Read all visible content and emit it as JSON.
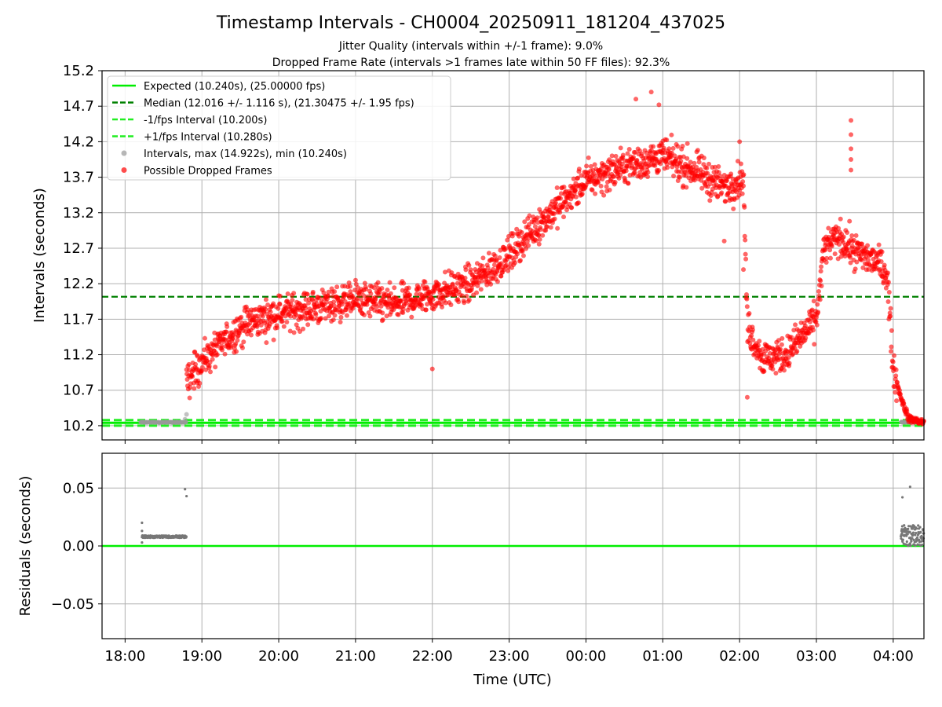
{
  "figure": {
    "title": "Timestamp Intervals - CH0004_20250911_181204_437025",
    "subtitle1": "Jitter Quality (intervals within +/-1 frame): 9.0%",
    "subtitle2": "Dropped Frame Rate (intervals >1 frames late within 50 FF files): 92.3%"
  },
  "colors": {
    "expected": "#00ee00",
    "median": "#008000",
    "fps_band": "#22ee22",
    "intervals": "#999999",
    "dropped": "#ff0000",
    "residuals": "#777777",
    "grid": "#b0b0b0"
  },
  "chart_data": [
    {
      "type": "scatter",
      "panel": "top",
      "ylabel": "Intervals (seconds)",
      "xlabel": "",
      "x_ticks": [
        "18:00",
        "19:00",
        "20:00",
        "21:00",
        "22:00",
        "23:00",
        "00:00",
        "01:00",
        "02:00",
        "03:00",
        "04:00"
      ],
      "x_range_hours": [
        17.7,
        28.4
      ],
      "ylim": [
        10.0,
        15.2
      ],
      "y_ticks": [
        "10.2",
        "10.7",
        "11.2",
        "11.7",
        "12.2",
        "12.7",
        "13.2",
        "13.7",
        "14.2",
        "14.7",
        "15.2"
      ],
      "grid": true,
      "legend_position": "top-left",
      "legend": [
        {
          "label": "Expected (10.240s), (25.00000 fps)",
          "style": "solid-line",
          "color": "#00ee00"
        },
        {
          "label": "Median (12.016 +/- 1.116 s), (21.30475 +/- 1.95 fps)",
          "style": "dashed-line",
          "color": "#008000"
        },
        {
          "label": "-1/fps Interval (10.200s)",
          "style": "dashed-line",
          "color": "#22ee22"
        },
        {
          "label": "+1/fps Interval (10.280s)",
          "style": "dashed-line",
          "color": "#22ee22"
        },
        {
          "label": "Intervals, max (14.922s), min (10.240s)",
          "style": "marker",
          "color": "#999999"
        },
        {
          "label": "Possible Dropped Frames",
          "style": "marker",
          "color": "#ff0000"
        }
      ],
      "hlines": {
        "expected": 10.24,
        "median": 12.016,
        "minus_1fps": 10.2,
        "plus_1fps": 10.28
      },
      "series": [
        {
          "name": "Intervals, max (14.922s), min (10.240s)",
          "kind": "normal_intervals",
          "segments": [
            {
              "x_start": 18.2,
              "x_end": 18.8,
              "y": 10.248
            },
            {
              "x_start": 28.1,
              "x_end": 28.4,
              "y": 10.252
            }
          ],
          "outliers": [
            {
              "x": 18.78,
              "y": 10.29
            },
            {
              "x": 18.8,
              "y": 10.36
            }
          ]
        },
        {
          "name": "Possible Dropped Frames",
          "kind": "dropped_frames",
          "trend": [
            [
              18.8,
              10.8
            ],
            [
              19.0,
              11.1
            ],
            [
              19.3,
              11.4
            ],
            [
              19.6,
              11.65
            ],
            [
              20.0,
              11.78
            ],
            [
              20.5,
              11.87
            ],
            [
              21.0,
              11.98
            ],
            [
              21.5,
              11.9
            ],
            [
              22.0,
              12.05
            ],
            [
              22.5,
              12.2
            ],
            [
              23.0,
              12.6
            ],
            [
              23.3,
              12.95
            ],
            [
              23.6,
              13.25
            ],
            [
              24.0,
              13.65
            ],
            [
              24.5,
              13.85
            ],
            [
              25.0,
              14.0
            ],
            [
              25.5,
              13.75
            ],
            [
              25.8,
              13.55
            ],
            [
              26.05,
              13.7
            ],
            [
              26.1,
              11.6
            ],
            [
              26.3,
              11.15
            ],
            [
              26.6,
              11.2
            ],
            [
              26.8,
              11.45
            ],
            [
              27.0,
              11.7
            ],
            [
              27.1,
              12.7
            ],
            [
              27.3,
              12.85
            ],
            [
              27.5,
              12.65
            ],
            [
              27.8,
              12.5
            ],
            [
              27.92,
              12.35
            ],
            [
              28.0,
              11.0
            ],
            [
              28.1,
              10.6
            ],
            [
              28.2,
              10.3
            ],
            [
              28.4,
              10.25
            ]
          ],
          "spread": 0.22,
          "extra_points": [
            [
              22.0,
              11.0
            ],
            [
              27.45,
              14.5
            ],
            [
              27.45,
              14.3
            ],
            [
              27.45,
              14.1
            ],
            [
              27.45,
              13.95
            ],
            [
              27.45,
              13.8
            ],
            [
              24.85,
              14.9
            ],
            [
              24.65,
              14.8
            ],
            [
              24.95,
              14.72
            ],
            [
              26.0,
              14.2
            ],
            [
              25.8,
              12.8
            ],
            [
              26.05,
              12.4
            ],
            [
              26.1,
              10.6
            ]
          ]
        }
      ]
    },
    {
      "type": "scatter",
      "panel": "bottom",
      "ylabel": "Residuals (seconds)",
      "xlabel": "Time (UTC)",
      "x_ticks": [
        "18:00",
        "19:00",
        "20:00",
        "21:00",
        "22:00",
        "23:00",
        "00:00",
        "01:00",
        "02:00",
        "03:00",
        "04:00"
      ],
      "x_range_hours": [
        17.7,
        28.4
      ],
      "ylim": [
        -0.08,
        0.08
      ],
      "y_ticks": [
        "0.05",
        "0.00",
        "−0.05"
      ],
      "grid": true,
      "series": [
        {
          "name": "Residuals",
          "kind": "residuals",
          "segments": [
            {
              "x_start": 18.22,
              "x_end": 18.8,
              "y": 0.008
            }
          ],
          "points": [
            [
              18.22,
              0.02
            ],
            [
              18.22,
              0.013
            ],
            [
              18.22,
              0.003
            ],
            [
              18.78,
              0.049
            ],
            [
              18.8,
              0.043
            ],
            [
              28.12,
              0.042
            ],
            [
              28.22,
              0.051
            ],
            [
              28.12,
              0.013
            ],
            [
              28.12,
              0.005
            ]
          ],
          "band": {
            "x_start": 28.1,
            "x_end": 28.4,
            "y_min": 0.0,
            "y_max": 0.018
          },
          "zero_line": 0.0
        }
      ]
    }
  ]
}
